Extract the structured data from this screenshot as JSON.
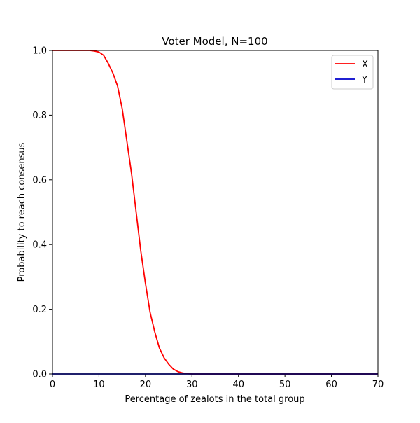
{
  "chart_data": {
    "type": "line",
    "title": "Voter Model, N=100",
    "xlabel": "Percentage of zealots in the total group",
    "ylabel": "Probability to reach consensus",
    "xlim": [
      0,
      70
    ],
    "ylim": [
      0,
      1.0
    ],
    "xticks": [
      "0",
      "10",
      "20",
      "30",
      "40",
      "50",
      "60",
      "70"
    ],
    "yticks": [
      "0.0",
      "0.2",
      "0.4",
      "0.6",
      "0.8",
      "1.0"
    ],
    "grid": false,
    "legend_position": "top-right",
    "series": [
      {
        "name": "X",
        "color": "#ff0000",
        "x": [
          0,
          1,
          2,
          3,
          4,
          5,
          6,
          7,
          8,
          9,
          10,
          11,
          12,
          13,
          14,
          15,
          16,
          17,
          18,
          19,
          20,
          21,
          22,
          23,
          24,
          25,
          26,
          27,
          28,
          29,
          30,
          40,
          50,
          60,
          70
        ],
        "y": [
          1.0,
          1.0,
          1.0,
          1.0,
          1.0,
          1.0,
          1.0,
          1.0,
          1.0,
          0.998,
          0.995,
          0.985,
          0.96,
          0.93,
          0.89,
          0.82,
          0.72,
          0.62,
          0.5,
          0.38,
          0.28,
          0.19,
          0.13,
          0.08,
          0.05,
          0.03,
          0.015,
          0.007,
          0.003,
          0.001,
          0.0,
          0.0,
          0.0,
          0.0,
          0.0
        ]
      },
      {
        "name": "Y",
        "color": "#0000cc",
        "x": [
          0,
          10,
          20,
          30,
          40,
          50,
          60,
          70
        ],
        "y": [
          0,
          0,
          0,
          0,
          0,
          0,
          0,
          0
        ]
      }
    ]
  }
}
